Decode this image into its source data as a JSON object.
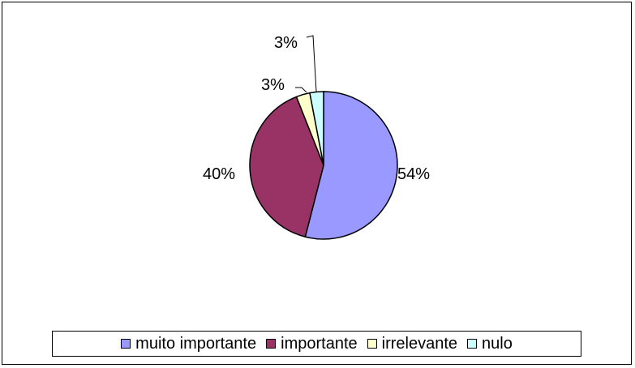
{
  "chart_data": {
    "type": "pie",
    "title": "",
    "categories": [
      "muito importante",
      "importante",
      "irrelevante",
      "nulo"
    ],
    "values": [
      54,
      40,
      3,
      3
    ],
    "data_labels": [
      "54%",
      "40%",
      "3%",
      "3%"
    ],
    "colors": [
      "#9999FF",
      "#993366",
      "#FFFFCC",
      "#CCFFFF"
    ],
    "legend_position": "bottom",
    "start_angle_deg": 0,
    "direction": "clockwise"
  }
}
